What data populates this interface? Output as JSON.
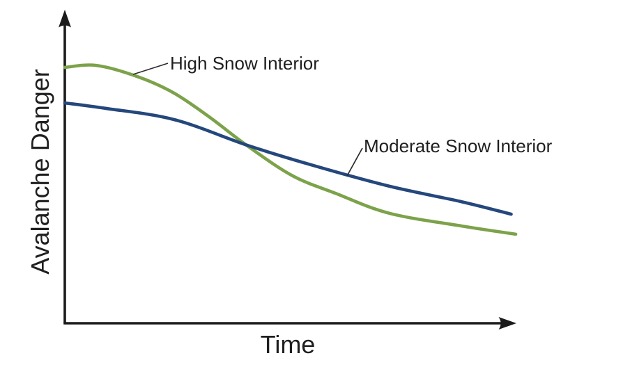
{
  "chart_data": {
    "type": "line",
    "title": "",
    "xlabel": "Time",
    "ylabel": "Avalanche Danger",
    "x_range": [
      0,
      100
    ],
    "y_range": [
      0,
      100
    ],
    "grid": false,
    "axes_arrows": true,
    "tick_labels": "none",
    "legend": "inline annotations with leader lines",
    "background": "#ffffff",
    "axis_color": "#1b1b1b",
    "text_color": "#1f1f1f",
    "leader_line_color": "#2b2b2b",
    "series": [
      {
        "name": "High Snow Interior",
        "color": "#7ca24a",
        "x": [
          0,
          7,
          16,
          24,
          32,
          40.5,
          50.5,
          60,
          72,
          88,
          100
        ],
        "y": [
          90.9,
          91.6,
          87.7,
          82.0,
          73.4,
          63.1,
          52.5,
          46.3,
          39.2,
          34.7,
          31.8
        ]
      },
      {
        "name": "Moderate Snow Interior",
        "color": "#24477c",
        "x": [
          0,
          9,
          24.3,
          40.5,
          55,
          72,
          88,
          99
        ],
        "y": [
          78.3,
          76.4,
          72.4,
          63.3,
          56.2,
          48.8,
          43.3,
          38.9
        ]
      }
    ]
  }
}
